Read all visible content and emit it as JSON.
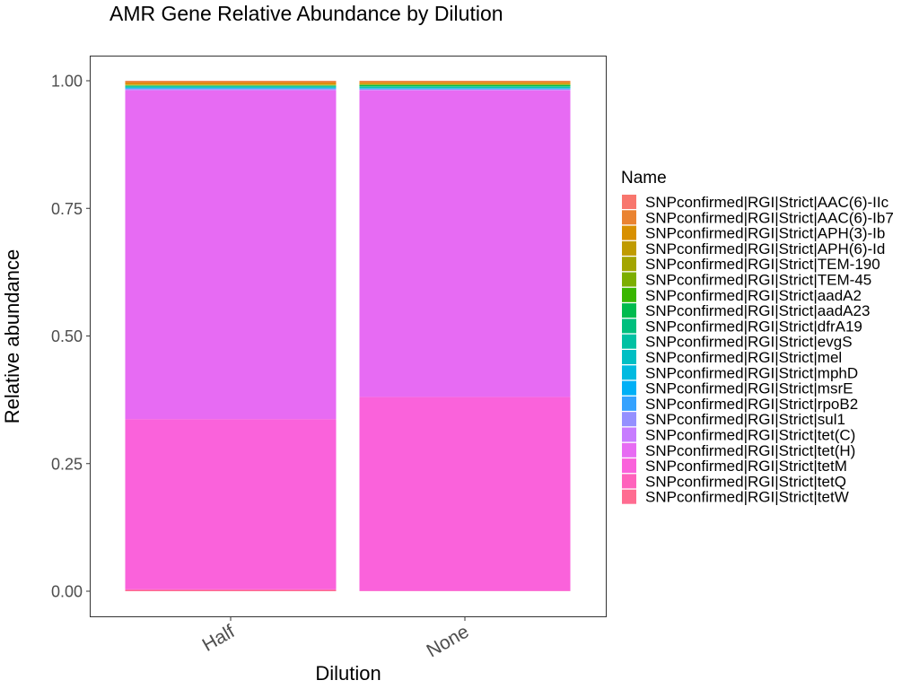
{
  "chart_data": {
    "type": "bar",
    "stacked": true,
    "title": "AMR Gene Relative Abundance by Dilution",
    "xlabel": "Dilution",
    "ylabel": "Relative abundance",
    "categories": [
      "Half",
      "None"
    ],
    "ylim": [
      0,
      1
    ],
    "yticks": [
      "0.00",
      "0.25",
      "0.50",
      "0.75",
      "1.00"
    ],
    "grid": false,
    "legend_title": "Name",
    "legend_position": "right",
    "series": [
      {
        "name": "SNPconfirmed|RGI|Strict|AAC(6)-IIc",
        "color": "#F8766D",
        "values": [
          0.0004,
          0.0003
        ]
      },
      {
        "name": "SNPconfirmed|RGI|Strict|AAC(6)-Ib7",
        "color": "#EA8331",
        "values": [
          0.004,
          0.0035
        ]
      },
      {
        "name": "SNPconfirmed|RGI|Strict|APH(3)-Ib",
        "color": "#D89000",
        "values": [
          0.003,
          0.0025
        ]
      },
      {
        "name": "SNPconfirmed|RGI|Strict|APH(6)-Id",
        "color": "#C09B00",
        "values": [
          0.0008,
          0.0008
        ]
      },
      {
        "name": "SNPconfirmed|RGI|Strict|TEM-190",
        "color": "#A3A500",
        "values": [
          0.0003,
          0.0003
        ]
      },
      {
        "name": "SNPconfirmed|RGI|Strict|TEM-45",
        "color": "#7CAE00",
        "values": [
          0.0005,
          0.0005
        ]
      },
      {
        "name": "SNPconfirmed|RGI|Strict|aadA2",
        "color": "#39B600",
        "values": [
          0.0005,
          0.0006
        ]
      },
      {
        "name": "SNPconfirmed|RGI|Strict|aadA23",
        "color": "#00BB4E",
        "values": [
          0.0005,
          0.0025
        ]
      },
      {
        "name": "SNPconfirmed|RGI|Strict|dfrA19",
        "color": "#00BF7D",
        "values": [
          0.0008,
          0.0008
        ]
      },
      {
        "name": "SNPconfirmed|RGI|Strict|evgS",
        "color": "#00C1A3",
        "values": [
          0.0018,
          0.0015
        ]
      },
      {
        "name": "SNPconfirmed|RGI|Strict|mel",
        "color": "#00BFC4",
        "values": [
          0.0015,
          0.0015
        ]
      },
      {
        "name": "SNPconfirmed|RGI|Strict|mphD",
        "color": "#00BAE0",
        "values": [
          0.0004,
          0.0004
        ]
      },
      {
        "name": "SNPconfirmed|RGI|Strict|msrE",
        "color": "#00B0F6",
        "values": [
          0.0004,
          0.0004
        ]
      },
      {
        "name": "SNPconfirmed|RGI|Strict|rpoB2",
        "color": "#35A2FF",
        "values": [
          0.0012,
          0.001
        ]
      },
      {
        "name": "SNPconfirmed|RGI|Strict|sul1",
        "color": "#9590FF",
        "values": [
          0.0014,
          0.0012
        ]
      },
      {
        "name": "SNPconfirmed|RGI|Strict|tet(C)",
        "color": "#C77CFF",
        "values": [
          0.0015,
          0.0012
        ]
      },
      {
        "name": "SNPconfirmed|RGI|Strict|tet(H)",
        "color": "#E76BF3",
        "values": [
          0.643,
          0.602
        ]
      },
      {
        "name": "SNPconfirmed|RGI|Strict|tetM",
        "color": "#FA62DB",
        "values": [
          0.333,
          0.381
        ]
      },
      {
        "name": "SNPconfirmed|RGI|Strict|tetQ",
        "color": "#FF62BC",
        "values": [
          0.0012,
          0.0003
        ]
      },
      {
        "name": "SNPconfirmed|RGI|Strict|tetW",
        "color": "#FF6C91",
        "values": [
          0.0025,
          0.0004
        ]
      }
    ]
  }
}
